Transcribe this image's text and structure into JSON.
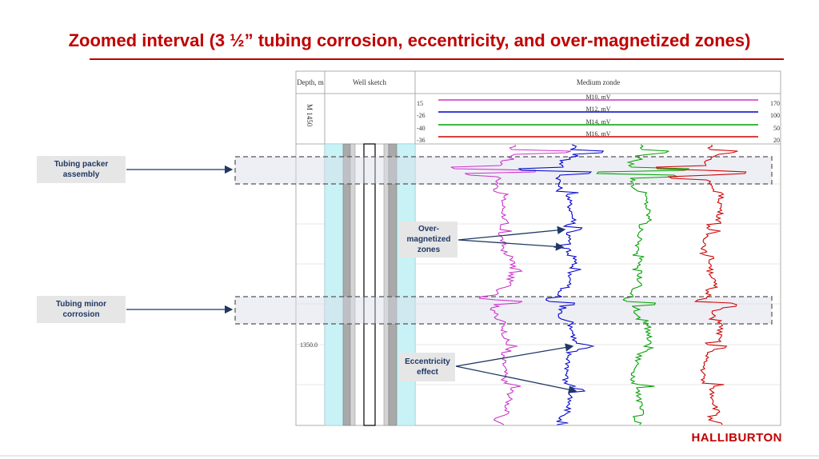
{
  "slide": {
    "title": "Zoomed interval (3 ½” tubing corrosion, eccentricity, and over-magnetized zones)",
    "logo": "HALLIBURTON"
  },
  "log": {
    "headers": {
      "depth": "Depth, m",
      "well_sketch": "Well sketch",
      "medium_zonde": "Medium zonde"
    },
    "depth_marker": "M 1450",
    "depth_tick": "1350.0",
    "curves": [
      {
        "name": "M10, mV",
        "min": "15",
        "max": "170",
        "color": "#cc33cc"
      },
      {
        "name": "M12, mV",
        "min": "-26",
        "max": "100",
        "color": "#0000cc"
      },
      {
        "name": "M14, mV",
        "min": "-40",
        "max": "50",
        "color": "#00a000"
      },
      {
        "name": "M16, mV",
        "min": "-36",
        "max": "20",
        "color": "#cc0000"
      }
    ]
  },
  "callouts": {
    "packer": "Tubing packer assembly",
    "corrosion": "Tubing minor corrosion",
    "overmag": "Over-magnetized zones",
    "eccentricity": "Eccentricity effect"
  }
}
